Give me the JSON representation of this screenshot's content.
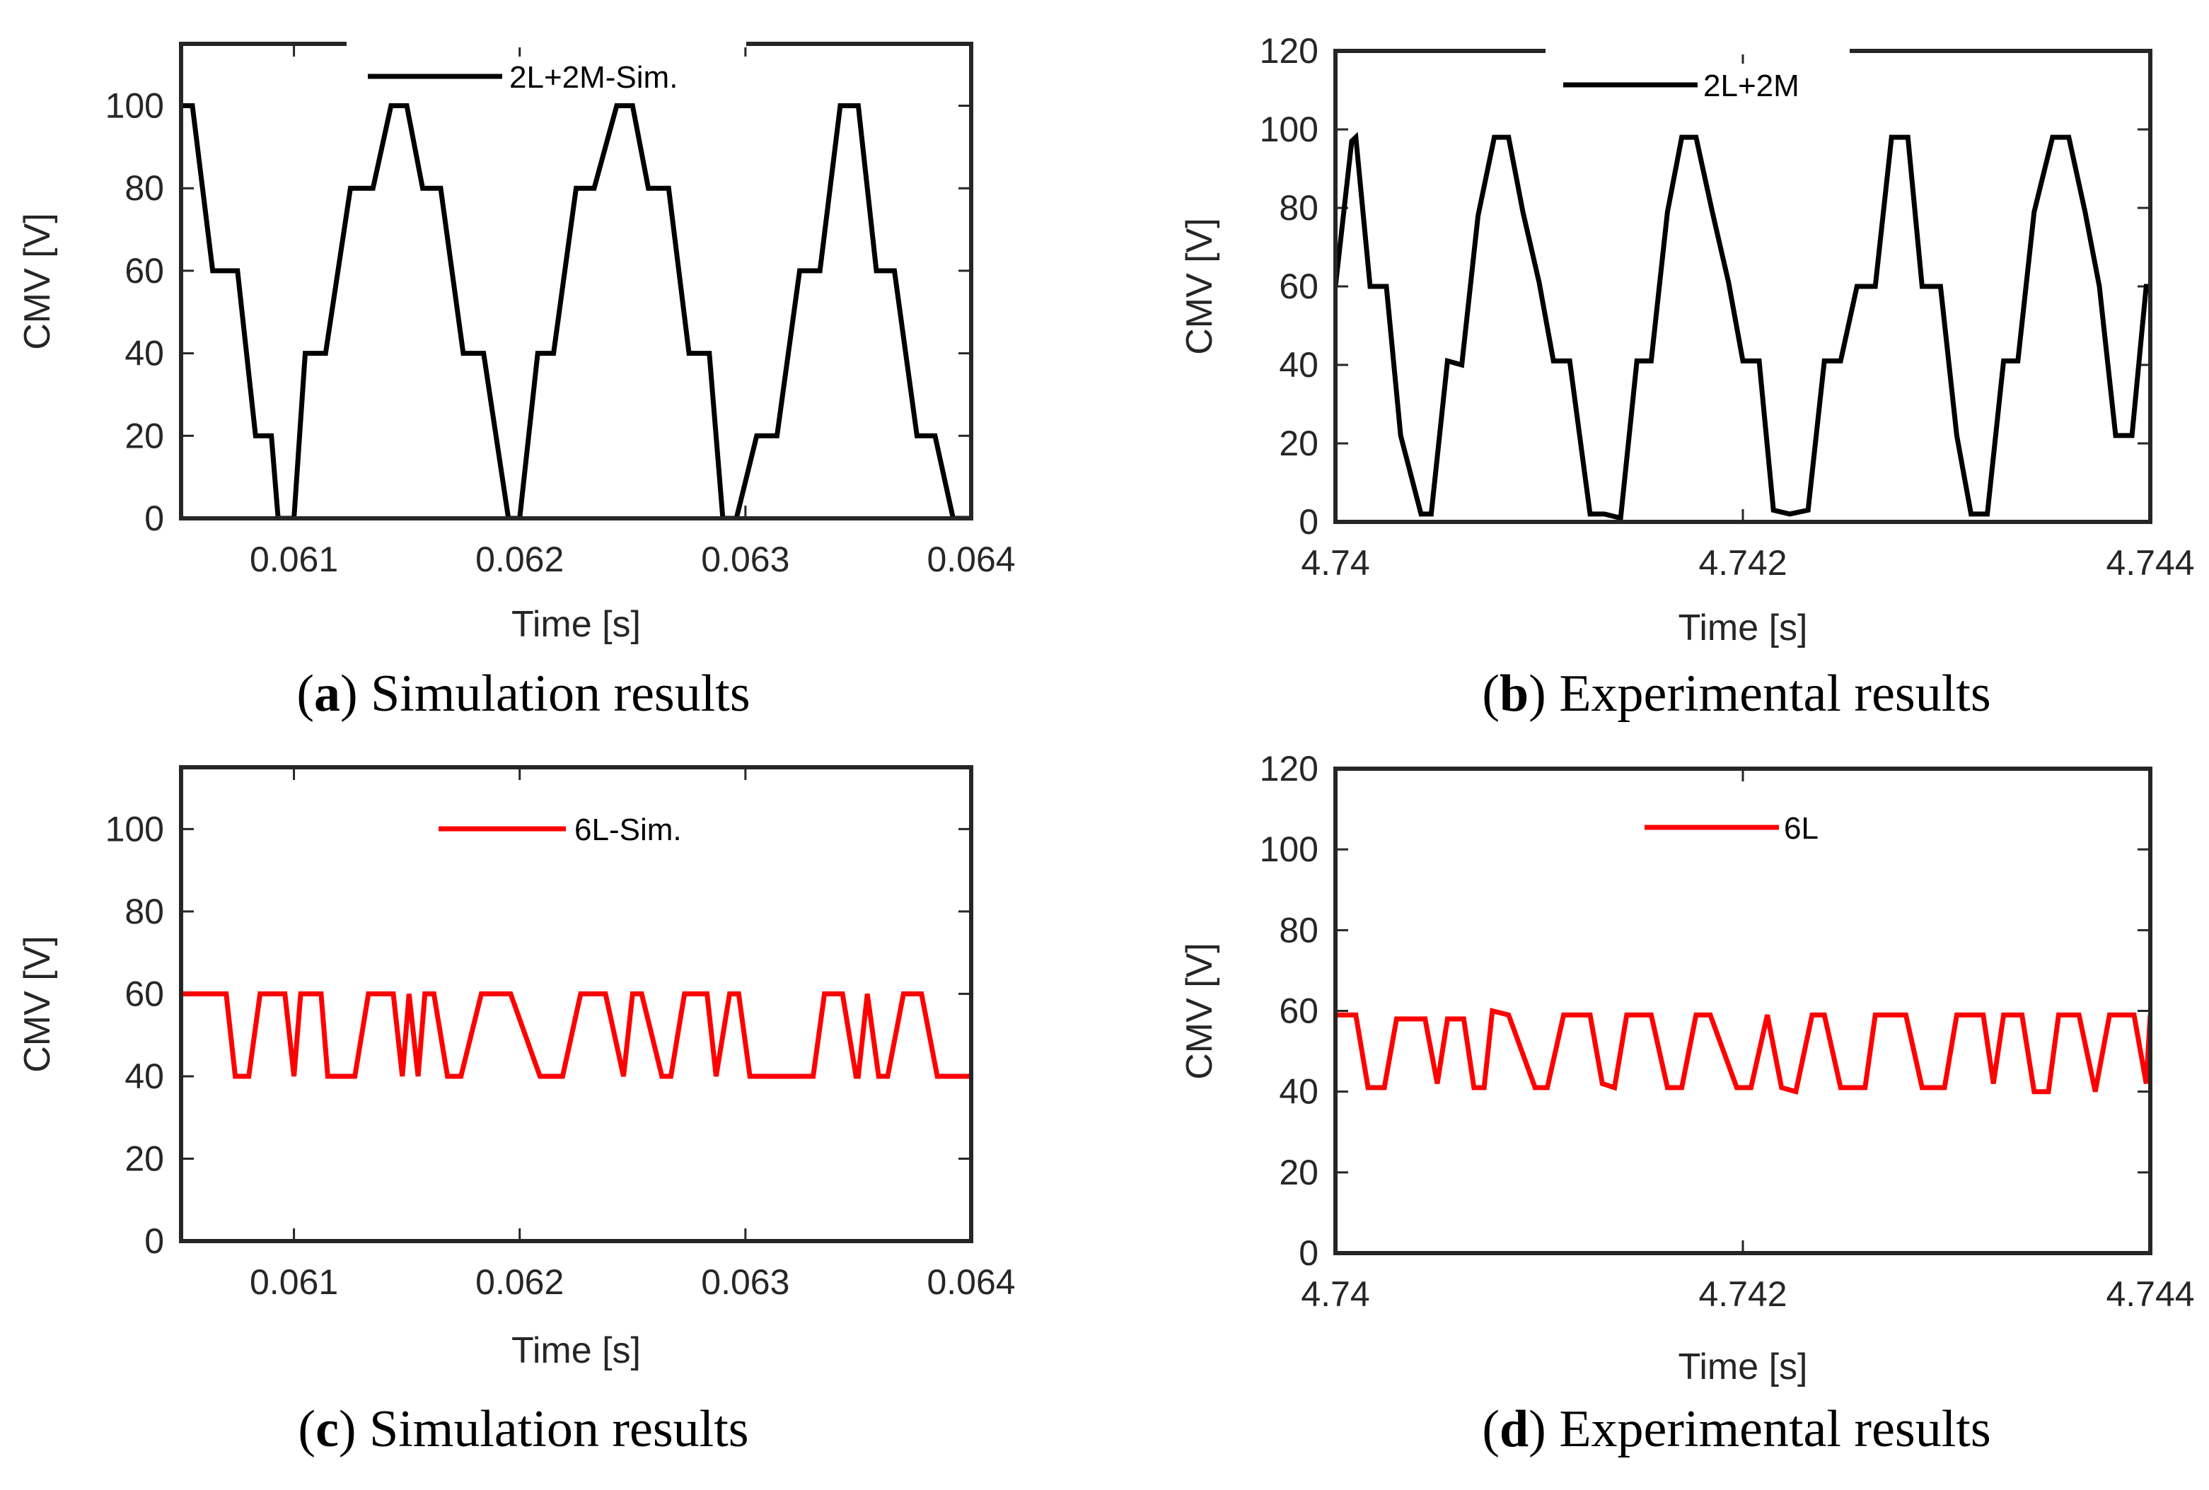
{
  "chart_data": [
    {
      "type": "line",
      "caption": {
        "letter": "a",
        "text": "Simulation results"
      },
      "xlabel": "Time [s]",
      "ylabel": "CMV [V]",
      "xlim": [
        0.0605,
        0.064
      ],
      "ylim": [
        0,
        115
      ],
      "xticks": [
        0.061,
        0.062,
        0.063,
        0.064
      ],
      "xtick_labels": [
        "0.061",
        "0.062",
        "0.063",
        "0.064"
      ],
      "yticks": [
        0,
        20,
        40,
        60,
        80,
        100
      ],
      "ytick_labels": [
        "0",
        "20",
        "40",
        "60",
        "80",
        "100"
      ],
      "legend_position": "top-center",
      "series": [
        {
          "name": "2L+2M-Sim.",
          "color": "#000000",
          "x": [
            0.0605,
            0.06055,
            0.06064,
            0.06075,
            0.06083,
            0.0609,
            0.06093,
            0.061,
            0.06105,
            0.06114,
            0.06125,
            0.06135,
            0.06143,
            0.0615,
            0.06157,
            0.06165,
            0.06175,
            0.06184,
            0.06195,
            0.062,
            0.06208,
            0.06215,
            0.06225,
            0.06233,
            0.06243,
            0.0625,
            0.06257,
            0.06266,
            0.06275,
            0.06284,
            0.0629,
            0.06296,
            0.06305,
            0.06314,
            0.06324,
            0.06333,
            0.06342,
            0.0635,
            0.06358,
            0.06366,
            0.06376,
            0.06384,
            0.06392,
            0.064
          ],
          "y": [
            100,
            100,
            60,
            60,
            20,
            20,
            0,
            0,
            40,
            40,
            80,
            80,
            100,
            100,
            80,
            80,
            40,
            40,
            0,
            0,
            40,
            40,
            80,
            80,
            100,
            100,
            80,
            80,
            40,
            40,
            0,
            0,
            20,
            20,
            60,
            60,
            100,
            100,
            60,
            60,
            20,
            20,
            0,
            0
          ]
        }
      ]
    },
    {
      "type": "line",
      "caption": {
        "letter": "b",
        "text": "Experimental results"
      },
      "xlabel": "Time [s]",
      "ylabel": "CMV [V]",
      "xlim": [
        4.74,
        4.744
      ],
      "ylim": [
        0,
        120
      ],
      "xticks": [
        4.74,
        4.742,
        4.744
      ],
      "xtick_labels": [
        "4.74",
        "4.742",
        "4.744"
      ],
      "yticks": [
        0,
        20,
        40,
        60,
        80,
        100,
        120
      ],
      "ytick_labels": [
        "0",
        "20",
        "40",
        "60",
        "80",
        "100",
        "120"
      ],
      "legend_position": "top-center",
      "series": [
        {
          "name": "2L+2M",
          "color": "#000000",
          "x": [
            4.74,
            4.74008,
            4.7401,
            4.74017,
            4.74025,
            4.74032,
            4.74042,
            4.74047,
            4.74055,
            4.74062,
            4.7407,
            4.74078,
            4.74085,
            4.74092,
            4.741,
            4.74107,
            4.74115,
            4.74125,
            4.74132,
            4.7414,
            4.74148,
            4.74155,
            4.74163,
            4.7417,
            4.74177,
            4.74185,
            4.74193,
            4.742,
            4.74208,
            4.74215,
            4.74223,
            4.74232,
            4.7424,
            4.74248,
            4.74256,
            4.74265,
            4.74273,
            4.74281,
            4.74288,
            4.74297,
            4.74305,
            4.74312,
            4.7432,
            4.74328,
            4.74335,
            4.74343,
            4.74352,
            4.7436,
            4.74368,
            4.74375,
            4.74383,
            4.74391,
            4.74398,
            4.744
          ],
          "y": [
            60,
            97,
            98,
            60,
            60,
            22,
            2,
            2,
            41,
            40,
            78,
            98,
            98,
            79,
            61,
            41,
            41,
            2,
            2,
            1,
            41,
            41,
            79,
            98,
            98,
            79,
            61,
            41,
            41,
            3,
            2,
            3,
            41,
            41,
            60,
            60,
            98,
            98,
            60,
            60,
            22,
            2,
            2,
            41,
            41,
            79,
            98,
            98,
            79,
            60,
            22,
            22,
            60,
            60
          ]
        }
      ]
    },
    {
      "type": "line",
      "caption": {
        "letter": "c",
        "text": "Simulation results"
      },
      "xlabel": "Time [s]",
      "ylabel": "CMV [V]",
      "xlim": [
        0.0605,
        0.064
      ],
      "ylim": [
        0,
        115
      ],
      "xticks": [
        0.061,
        0.062,
        0.063,
        0.064
      ],
      "xtick_labels": [
        "0.061",
        "0.062",
        "0.063",
        "0.064"
      ],
      "yticks": [
        0,
        20,
        40,
        60,
        80,
        100
      ],
      "ytick_labels": [
        "0",
        "20",
        "40",
        "60",
        "80",
        "100"
      ],
      "legend_position": "top-center",
      "series": [
        {
          "name": "6L-Sim.",
          "color": "#ff0000",
          "x": [
            0.0605,
            0.0607,
            0.06074,
            0.0608,
            0.06085,
            0.06096,
            0.061,
            0.06103,
            0.06112,
            0.06115,
            0.06127,
            0.06133,
            0.06144,
            0.06148,
            0.06151,
            0.06155,
            0.06158,
            0.06162,
            0.06168,
            0.06174,
            0.06183,
            0.06196,
            0.06209,
            0.06219,
            0.06227,
            0.06238,
            0.06246,
            0.0625,
            0.06254,
            0.06263,
            0.06267,
            0.06273,
            0.06283,
            0.06287,
            0.06293,
            0.06297,
            0.06302,
            0.06312,
            0.0633,
            0.06335,
            0.06343,
            0.06349,
            0.0635,
            0.06354,
            0.06359,
            0.06363,
            0.0637,
            0.06378,
            0.06385,
            0.064
          ],
          "y": [
            60,
            60,
            40,
            40,
            60,
            60,
            40,
            60,
            60,
            40,
            40,
            60,
            60,
            40,
            60,
            40,
            60,
            60,
            40,
            40,
            60,
            60,
            40,
            40,
            60,
            60,
            40,
            60,
            60,
            40,
            40,
            60,
            60,
            40,
            60,
            60,
            40,
            40,
            40,
            60,
            60,
            40,
            40,
            60,
            40,
            40,
            60,
            60,
            40,
            40
          ]
        }
      ]
    },
    {
      "type": "line",
      "caption": {
        "letter": "d",
        "text": "Experimental results"
      },
      "xlabel": "Time [s]",
      "ylabel": "CMV [V]",
      "xlim": [
        4.74,
        4.744
      ],
      "ylim": [
        0,
        120
      ],
      "xticks": [
        4.74,
        4.742,
        4.744
      ],
      "xtick_labels": [
        "4.74",
        "4.742",
        "4.744"
      ],
      "yticks": [
        0,
        20,
        40,
        60,
        80,
        100,
        120
      ],
      "ytick_labels": [
        "0",
        "20",
        "40",
        "60",
        "80",
        "100",
        "120"
      ],
      "legend_position": "top-center",
      "series": [
        {
          "name": "6L",
          "color": "#ff0000",
          "x": [
            4.74,
            4.7401,
            4.74016,
            4.74024,
            4.7403,
            4.74044,
            4.7405,
            4.74055,
            4.74063,
            4.74068,
            4.74073,
            4.74077,
            4.74085,
            4.74098,
            4.74104,
            4.74112,
            4.74125,
            4.74131,
            4.74137,
            4.74143,
            4.74155,
            4.74163,
            4.7417,
            4.74177,
            4.74184,
            4.74197,
            4.74204,
            4.74212,
            4.74219,
            4.74226,
            4.74234,
            4.7424,
            4.74248,
            4.74256,
            4.7426,
            4.74265,
            4.7428,
            4.74288,
            4.74299,
            4.74305,
            4.74318,
            4.74323,
            4.74328,
            4.74337,
            4.74343,
            4.7435,
            4.74355,
            4.74365,
            4.74373,
            4.7438,
            4.74392,
            4.74398,
            4.744
          ],
          "y": [
            59,
            59,
            41,
            41,
            58,
            58,
            42,
            58,
            58,
            41,
            41,
            60,
            59,
            41,
            41,
            59,
            59,
            42,
            41,
            59,
            59,
            41,
            41,
            59,
            59,
            41,
            41,
            59,
            41,
            40,
            59,
            59,
            41,
            41,
            41,
            59,
            59,
            41,
            41,
            59,
            59,
            42,
            59,
            59,
            40,
            40,
            59,
            59,
            40,
            59,
            59,
            42,
            59
          ]
        }
      ]
    }
  ]
}
